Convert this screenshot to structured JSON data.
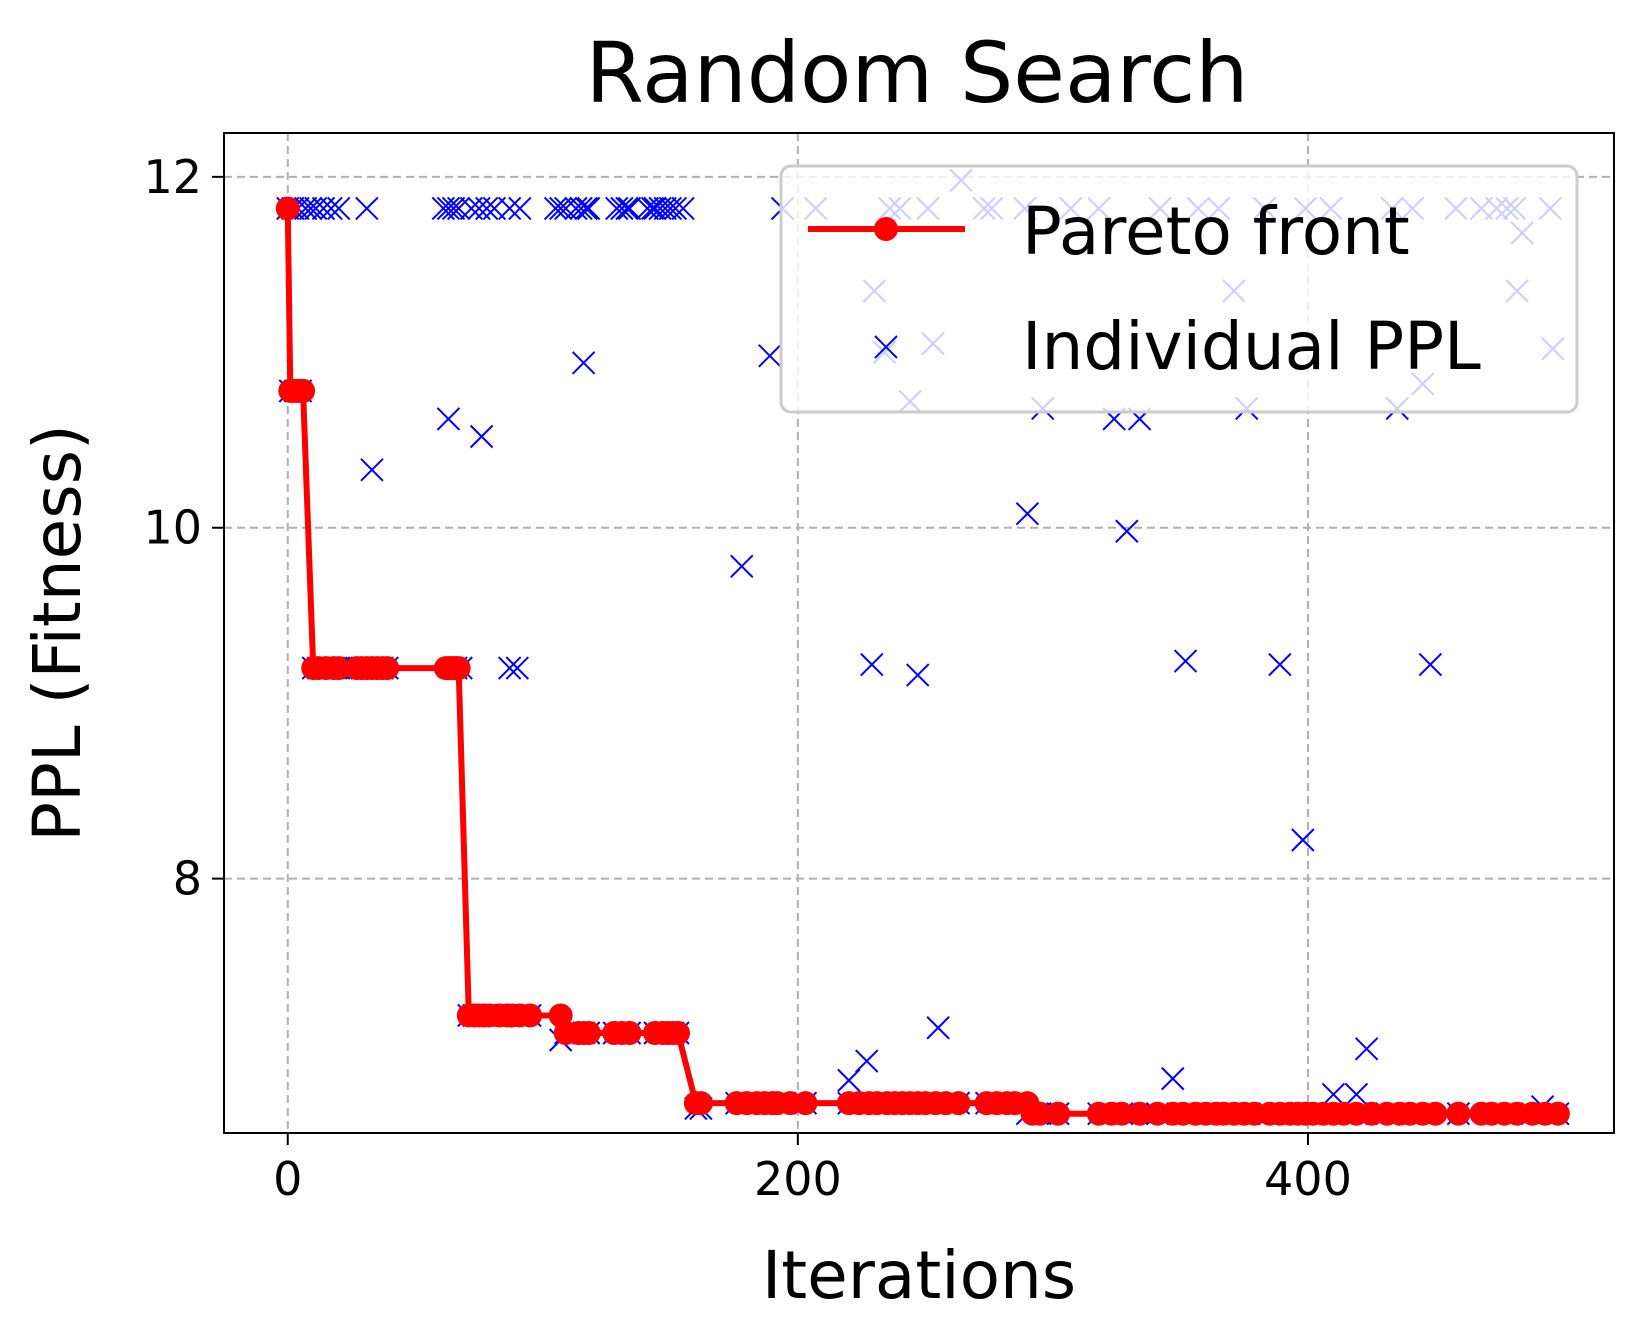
{
  "chart_data": {
    "type": "line",
    "title": "Random Search",
    "xlabel": "Iterations",
    "ylabel": "PPL (Fitness)",
    "xlim": [
      -25,
      520
    ],
    "ylim": [
      6.55,
      12.25
    ],
    "xticks": [
      0,
      200,
      400
    ],
    "xtick_labels": [
      "0",
      "200",
      "400"
    ],
    "yticks": [
      8,
      10,
      12
    ],
    "ytick_labels": [
      "8",
      "10",
      "12"
    ],
    "grid": true,
    "legend": {
      "position": "top-right",
      "entries": [
        "Pareto front",
        "Individual PPL"
      ]
    },
    "colors": {
      "pareto": "#ff0000",
      "individual": "#0000ff",
      "grid": "#b0b0b0"
    },
    "series": [
      {
        "name": "Pareto front",
        "style": "line-with-markers",
        "points": [
          [
            0,
            11.82
          ],
          [
            1,
            10.78
          ],
          [
            2,
            10.78
          ],
          [
            3,
            10.78
          ],
          [
            4,
            10.78
          ],
          [
            5,
            10.78
          ],
          [
            6,
            10.78
          ],
          [
            10,
            9.2
          ],
          [
            12,
            9.2
          ],
          [
            15,
            9.2
          ],
          [
            18,
            9.2
          ],
          [
            20,
            9.2
          ],
          [
            27,
            9.2
          ],
          [
            29,
            9.2
          ],
          [
            31,
            9.2
          ],
          [
            33,
            9.2
          ],
          [
            35,
            9.2
          ],
          [
            37,
            9.2
          ],
          [
            39,
            9.2
          ],
          [
            62,
            9.2
          ],
          [
            63,
            9.2
          ],
          [
            64,
            9.2
          ],
          [
            65,
            9.2
          ],
          [
            66,
            9.2
          ],
          [
            67,
            9.2
          ],
          [
            71,
            7.22
          ],
          [
            73,
            7.22
          ],
          [
            75,
            7.22
          ],
          [
            77,
            7.22
          ],
          [
            79,
            7.22
          ],
          [
            83,
            7.22
          ],
          [
            86,
            7.22
          ],
          [
            88,
            7.22
          ],
          [
            91,
            7.22
          ],
          [
            95,
            7.22
          ],
          [
            107,
            7.22
          ],
          [
            109,
            7.12
          ],
          [
            114,
            7.12
          ],
          [
            116,
            7.12
          ],
          [
            118,
            7.12
          ],
          [
            128,
            7.12
          ],
          [
            131,
            7.12
          ],
          [
            134,
            7.12
          ],
          [
            144,
            7.12
          ],
          [
            147,
            7.12
          ],
          [
            149,
            7.12
          ],
          [
            151,
            7.12
          ],
          [
            153,
            7.12
          ],
          [
            160,
            6.72
          ],
          [
            162,
            6.72
          ],
          [
            176,
            6.72
          ],
          [
            180,
            6.72
          ],
          [
            184,
            6.72
          ],
          [
            187,
            6.72
          ],
          [
            190,
            6.72
          ],
          [
            192,
            6.72
          ],
          [
            197,
            6.72
          ],
          [
            203,
            6.72
          ],
          [
            220,
            6.72
          ],
          [
            224,
            6.72
          ],
          [
            228,
            6.72
          ],
          [
            231,
            6.72
          ],
          [
            235,
            6.72
          ],
          [
            238,
            6.72
          ],
          [
            241,
            6.72
          ],
          [
            244,
            6.72
          ],
          [
            247,
            6.72
          ],
          [
            250,
            6.72
          ],
          [
            254,
            6.72
          ],
          [
            258,
            6.72
          ],
          [
            263,
            6.72
          ],
          [
            274,
            6.72
          ],
          [
            278,
            6.72
          ],
          [
            282,
            6.72
          ],
          [
            285,
            6.72
          ],
          [
            290,
            6.72
          ],
          [
            292,
            6.66
          ],
          [
            295,
            6.66
          ],
          [
            302,
            6.66
          ],
          [
            318,
            6.66
          ],
          [
            323,
            6.66
          ],
          [
            327,
            6.66
          ],
          [
            334,
            6.66
          ],
          [
            341,
            6.66
          ],
          [
            347,
            6.66
          ],
          [
            351,
            6.66
          ],
          [
            356,
            6.66
          ],
          [
            360,
            6.66
          ],
          [
            364,
            6.66
          ],
          [
            367,
            6.66
          ],
          [
            371,
            6.66
          ],
          [
            375,
            6.66
          ],
          [
            379,
            6.66
          ],
          [
            385,
            6.66
          ],
          [
            389,
            6.66
          ],
          [
            393,
            6.66
          ],
          [
            396,
            6.66
          ],
          [
            399,
            6.66
          ],
          [
            402,
            6.66
          ],
          [
            406,
            6.66
          ],
          [
            410,
            6.66
          ],
          [
            414,
            6.66
          ],
          [
            419,
            6.66
          ],
          [
            425,
            6.66
          ],
          [
            431,
            6.66
          ],
          [
            436,
            6.66
          ],
          [
            440,
            6.66
          ],
          [
            445,
            6.66
          ],
          [
            450,
            6.66
          ],
          [
            459,
            6.66
          ],
          [
            468,
            6.66
          ],
          [
            472,
            6.66
          ],
          [
            477,
            6.66
          ],
          [
            482,
            6.66
          ],
          [
            488,
            6.66
          ],
          [
            493,
            6.66
          ],
          [
            498,
            6.66
          ]
        ]
      },
      {
        "name": "Individual PPL",
        "style": "x-markers",
        "points": [
          [
            0,
            11.82
          ],
          [
            2,
            11.82
          ],
          [
            4,
            11.82
          ],
          [
            7,
            11.82
          ],
          [
            9,
            11.82
          ],
          [
            11,
            11.82
          ],
          [
            14,
            11.82
          ],
          [
            17,
            11.82
          ],
          [
            20,
            11.82
          ],
          [
            31,
            11.82
          ],
          [
            1,
            10.78
          ],
          [
            3,
            10.78
          ],
          [
            5,
            10.78
          ],
          [
            10,
            9.2
          ],
          [
            12,
            9.2
          ],
          [
            15,
            9.2
          ],
          [
            18,
            9.2
          ],
          [
            20,
            9.2
          ],
          [
            27,
            9.2
          ],
          [
            29,
            9.2
          ],
          [
            31,
            9.2
          ],
          [
            33,
            9.2
          ],
          [
            35,
            9.2
          ],
          [
            37,
            9.2
          ],
          [
            39,
            9.2
          ],
          [
            33,
            10.33
          ],
          [
            61,
            11.82
          ],
          [
            63,
            11.82
          ],
          [
            65,
            11.82
          ],
          [
            67,
            11.82
          ],
          [
            72,
            11.82
          ],
          [
            75,
            11.82
          ],
          [
            78,
            11.82
          ],
          [
            81,
            11.82
          ],
          [
            87,
            11.82
          ],
          [
            91,
            11.82
          ],
          [
            63,
            10.62
          ],
          [
            66,
            9.2
          ],
          [
            68,
            9.2
          ],
          [
            76,
            10.52
          ],
          [
            87,
            9.2
          ],
          [
            90,
            9.2
          ],
          [
            71,
            7.22
          ],
          [
            73,
            7.22
          ],
          [
            75,
            7.22
          ],
          [
            77,
            7.22
          ],
          [
            79,
            7.22
          ],
          [
            83,
            7.22
          ],
          [
            86,
            7.22
          ],
          [
            88,
            7.22
          ],
          [
            91,
            7.22
          ],
          [
            95,
            7.22
          ],
          [
            105,
            11.82
          ],
          [
            107,
            11.82
          ],
          [
            109,
            11.82
          ],
          [
            113,
            11.82
          ],
          [
            115,
            11.82
          ],
          [
            117,
            11.82
          ],
          [
            118,
            11.82
          ],
          [
            129,
            11.82
          ],
          [
            131,
            11.82
          ],
          [
            133,
            11.82
          ],
          [
            134,
            11.82
          ],
          [
            141,
            11.82
          ],
          [
            143,
            11.82
          ],
          [
            144,
            11.82
          ],
          [
            146,
            11.82
          ],
          [
            148,
            11.82
          ],
          [
            150,
            11.82
          ],
          [
            152,
            11.82
          ],
          [
            155,
            11.82
          ],
          [
            107,
            7.08
          ],
          [
            109,
            7.12
          ],
          [
            114,
            7.12
          ],
          [
            116,
            7.12
          ],
          [
            118,
            7.12
          ],
          [
            128,
            7.12
          ],
          [
            131,
            7.12
          ],
          [
            134,
            7.12
          ],
          [
            144,
            7.12
          ],
          [
            147,
            7.12
          ],
          [
            149,
            7.12
          ],
          [
            151,
            7.12
          ],
          [
            153,
            7.12
          ],
          [
            116,
            10.94
          ],
          [
            160,
            6.69
          ],
          [
            162,
            6.69
          ],
          [
            176,
            6.72
          ],
          [
            180,
            6.72
          ],
          [
            184,
            6.72
          ],
          [
            178,
            9.78
          ],
          [
            189,
            10.98
          ],
          [
            194,
            11.82
          ],
          [
            207,
            11.82
          ],
          [
            230,
            11.35
          ],
          [
            236,
            11.82
          ],
          [
            240,
            11.82
          ],
          [
            244,
            10.72
          ],
          [
            251,
            11.82
          ],
          [
            253,
            11.05
          ],
          [
            264,
            11.98
          ],
          [
            273,
            11.82
          ],
          [
            276,
            11.82
          ],
          [
            289,
            11.82
          ],
          [
            296,
            10.68
          ],
          [
            307,
            11.82
          ],
          [
            318,
            11.82
          ],
          [
            342,
            11.82
          ],
          [
            357,
            11.82
          ],
          [
            365,
            11.82
          ],
          [
            371,
            11.35
          ],
          [
            376,
            10.68
          ],
          [
            383,
            11.82
          ],
          [
            399,
            11.82
          ],
          [
            409,
            11.82
          ],
          [
            433,
            11.82
          ],
          [
            435,
            10.68
          ],
          [
            441,
            11.82
          ],
          [
            445,
            10.82
          ],
          [
            458,
            11.82
          ],
          [
            468,
            11.82
          ],
          [
            474,
            11.82
          ],
          [
            478,
            11.82
          ],
          [
            481,
            11.82
          ],
          [
            482,
            11.35
          ],
          [
            484,
            11.68
          ],
          [
            495,
            11.82
          ],
          [
            496,
            11.02
          ],
          [
            234,
            11.0
          ],
          [
            220,
            6.85
          ],
          [
            227,
            6.96
          ],
          [
            229,
            9.22
          ],
          [
            247,
            9.16
          ],
          [
            255,
            7.15
          ],
          [
            290,
            10.08
          ],
          [
            324,
            10.62
          ],
          [
            329,
            9.98
          ],
          [
            334,
            10.62
          ],
          [
            347,
            6.86
          ],
          [
            352,
            9.24
          ],
          [
            389,
            9.22
          ],
          [
            398,
            8.22
          ],
          [
            410,
            6.77
          ],
          [
            419,
            6.77
          ],
          [
            423,
            7.03
          ],
          [
            448,
            9.22
          ],
          [
            492,
            6.7
          ],
          [
            203,
            6.72
          ],
          [
            220,
            6.72
          ],
          [
            224,
            6.72
          ],
          [
            228,
            6.72
          ],
          [
            231,
            6.72
          ],
          [
            238,
            6.72
          ],
          [
            244,
            6.72
          ],
          [
            250,
            6.72
          ],
          [
            258,
            6.72
          ],
          [
            263,
            6.72
          ],
          [
            274,
            6.72
          ],
          [
            282,
            6.72
          ],
          [
            290,
            6.66
          ],
          [
            295,
            6.66
          ],
          [
            302,
            6.66
          ],
          [
            318,
            6.66
          ],
          [
            327,
            6.66
          ],
          [
            341,
            6.66
          ],
          [
            351,
            6.66
          ],
          [
            360,
            6.66
          ],
          [
            371,
            6.66
          ],
          [
            385,
            6.66
          ],
          [
            396,
            6.66
          ],
          [
            406,
            6.66
          ],
          [
            419,
            6.66
          ],
          [
            431,
            6.66
          ],
          [
            445,
            6.66
          ],
          [
            459,
            6.66
          ],
          [
            472,
            6.66
          ],
          [
            488,
            6.66
          ],
          [
            498,
            6.66
          ]
        ]
      }
    ]
  }
}
